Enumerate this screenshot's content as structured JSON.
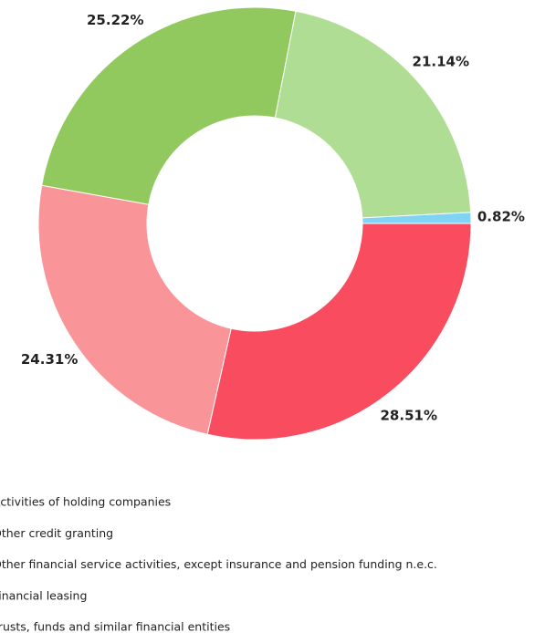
{
  "chart_data": {
    "type": "donut",
    "labels": [
      "Activities of holding companies",
      "Other credit granting",
      "Other financial service activities, except insurance and pension funding n.e.c.",
      "Financial leasing",
      "Trusts, funds and similar financial entities"
    ],
    "values": [
      28.51,
      24.31,
      25.22,
      21.14,
      0.82
    ],
    "value_labels": [
      "28.51%",
      "24.31%",
      "25.22%",
      "21.14%",
      "0.82%"
    ],
    "colors": [
      "#f94c5e",
      "#f99498",
      "#92c95e",
      "#b0dd94",
      "#7fd3f4"
    ]
  }
}
